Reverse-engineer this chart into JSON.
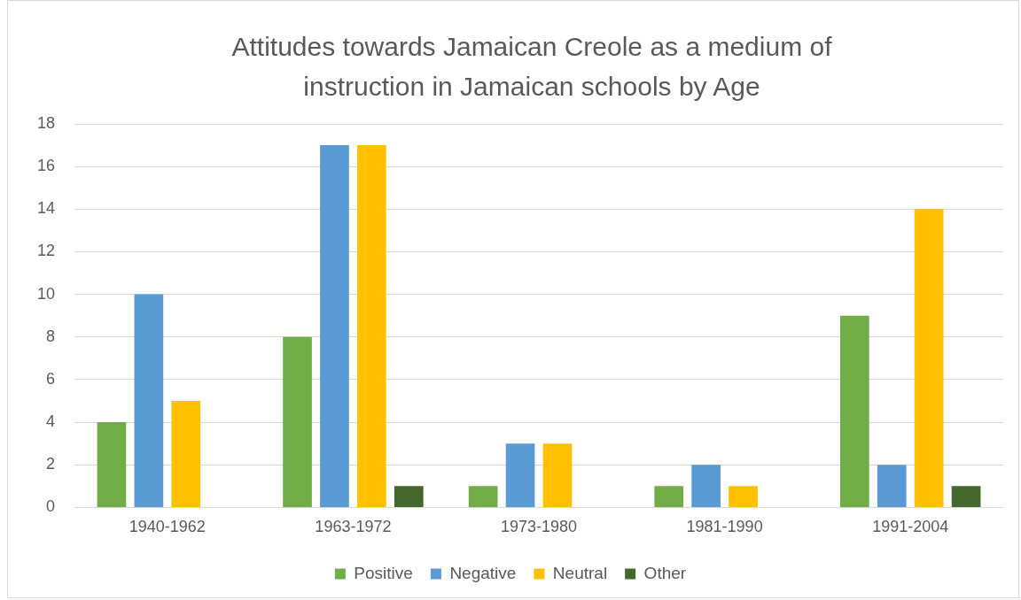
{
  "chart_data": {
    "type": "bar",
    "title": "Attitudes towards Jamaican Creole as a medium of instruction in Jamaican schools by Age",
    "categories": [
      "1940-1962",
      "1963-1972",
      "1973-1980",
      "1981-1990",
      "1991-2004"
    ],
    "series": [
      {
        "name": "Positive",
        "color": "#70ad47",
        "values": [
          4,
          8,
          1,
          1,
          9
        ]
      },
      {
        "name": "Negative",
        "color": "#5b9bd5",
        "values": [
          10,
          17,
          3,
          2,
          2
        ]
      },
      {
        "name": "Neutral",
        "color": "#ffc000",
        "values": [
          5,
          17,
          3,
          1,
          14
        ]
      },
      {
        "name": "Other",
        "color": "#43682b",
        "values": [
          0,
          1,
          0,
          0,
          1
        ]
      }
    ],
    "ylim": [
      0,
      18
    ],
    "yticks": [
      0,
      2,
      4,
      6,
      8,
      10,
      12,
      14,
      16,
      18
    ],
    "grid": "y",
    "legend": "bottom"
  }
}
